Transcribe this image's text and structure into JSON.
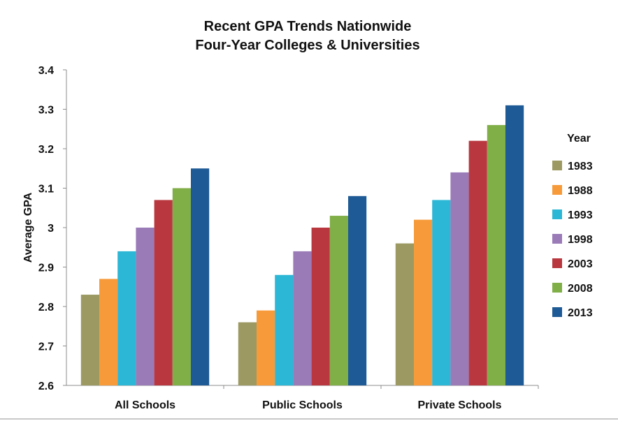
{
  "chart_data": {
    "type": "bar",
    "title": "Recent GPA Trends Nationwide",
    "subtitle": "Four-Year Colleges & Universities",
    "xlabel": "",
    "ylabel": "Average GPA",
    "ylim": [
      2.6,
      3.4
    ],
    "yticks": [
      "2.6",
      "2.7",
      "2.8",
      "2.9",
      "3",
      "3.1",
      "3.2",
      "3.3",
      "3.4"
    ],
    "grid": false,
    "legend_title": "Year",
    "legend_position": "right",
    "categories": [
      "All Schools",
      "Public Schools",
      "Private Schools"
    ],
    "series": [
      {
        "name": "1983",
        "color": "#9c9a62",
        "values": [
          2.83,
          2.76,
          2.96
        ]
      },
      {
        "name": "1988",
        "color": "#f79b3a",
        "values": [
          2.87,
          2.79,
          3.02
        ]
      },
      {
        "name": "1993",
        "color": "#2cb7d6",
        "values": [
          2.94,
          2.88,
          3.07
        ]
      },
      {
        "name": "1998",
        "color": "#9a7bb8",
        "values": [
          3.0,
          2.94,
          3.14
        ]
      },
      {
        "name": "2003",
        "color": "#b9383f",
        "values": [
          3.07,
          3.0,
          3.22
        ]
      },
      {
        "name": "2008",
        "color": "#80ae47",
        "values": [
          3.1,
          3.03,
          3.26
        ]
      },
      {
        "name": "2013",
        "color": "#1e5a95",
        "values": [
          3.15,
          3.08,
          3.31
        ]
      }
    ]
  }
}
